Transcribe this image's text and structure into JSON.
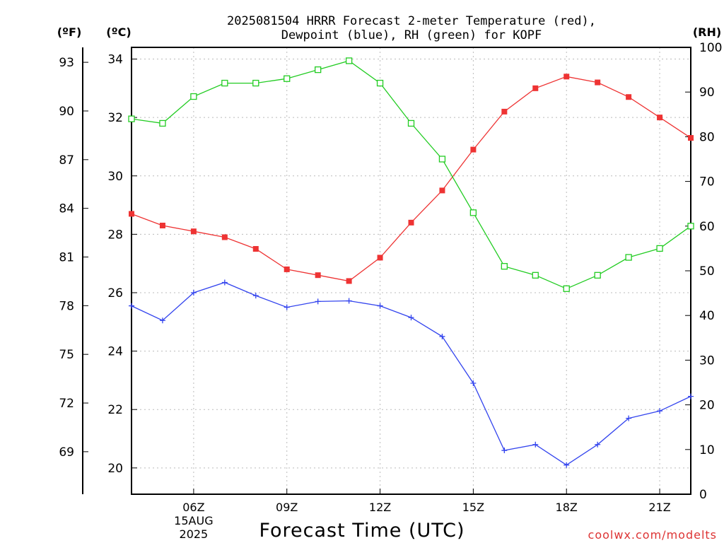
{
  "chart_data": {
    "type": "line",
    "title_line1": "2025081504 HRRR Forecast 2-meter Temperature (red),",
    "title_line2": "Dewpoint (blue), RH (green) for KOPF",
    "xlabel": "Forecast Time (UTC)",
    "credit": "coolwx.com/modelts",
    "units": {
      "fahrenheit": "(ºF)",
      "celsius": "(ºC)",
      "rh": "(RH)"
    },
    "x_hours": [
      4,
      5,
      6,
      7,
      8,
      9,
      10,
      11,
      12,
      13,
      14,
      15,
      16,
      17,
      18,
      19,
      20,
      21,
      22
    ],
    "x_ticks": [
      {
        "hour": 6,
        "label": "06Z",
        "date": "15AUG",
        "year": "2025"
      },
      {
        "hour": 9,
        "label": "09Z"
      },
      {
        "hour": 12,
        "label": "12Z"
      },
      {
        "hour": 15,
        "label": "15Z"
      },
      {
        "hour": 18,
        "label": "18Z"
      },
      {
        "hour": 21,
        "label": "21Z"
      }
    ],
    "xlim": [
      4,
      22
    ],
    "celsius_axis": {
      "ylim": [
        19.1,
        34.4
      ],
      "ticks": [
        "20",
        "22",
        "24",
        "26",
        "28",
        "30",
        "32",
        "34"
      ]
    },
    "fahrenheit_axis": {
      "ticks": [
        "69",
        "72",
        "75",
        "78",
        "81",
        "84",
        "87",
        "90",
        "93"
      ]
    },
    "rh_axis": {
      "ylim": [
        0,
        100
      ],
      "ticks": [
        "0",
        "10",
        "20",
        "30",
        "40",
        "50",
        "60",
        "70",
        "80",
        "90",
        "100"
      ]
    },
    "grid": true,
    "series": [
      {
        "name": "Temperature",
        "color": "#ee3333",
        "marker": "filled-square",
        "axis": "celsius",
        "values": [
          28.7,
          28.3,
          28.1,
          27.9,
          27.5,
          26.8,
          26.6,
          26.4,
          27.2,
          28.4,
          29.5,
          30.9,
          32.2,
          33.0,
          33.4,
          33.2,
          32.7,
          32.0,
          31.3
        ]
      },
      {
        "name": "Dewpoint",
        "color": "#3344ee",
        "marker": "plus",
        "axis": "celsius",
        "values": [
          25.55,
          25.05,
          26.0,
          26.35,
          25.9,
          25.5,
          25.7,
          25.72,
          25.55,
          25.15,
          24.5,
          22.9,
          20.6,
          20.8,
          20.1,
          20.8,
          21.7,
          21.95,
          22.45
        ]
      },
      {
        "name": "RH",
        "color": "#22cc22",
        "marker": "open-square",
        "axis": "rh",
        "values": [
          84,
          83,
          89,
          92,
          92,
          93,
          95,
          97,
          92,
          83,
          75,
          63,
          51,
          49,
          46,
          49,
          53,
          55,
          60
        ]
      }
    ]
  }
}
